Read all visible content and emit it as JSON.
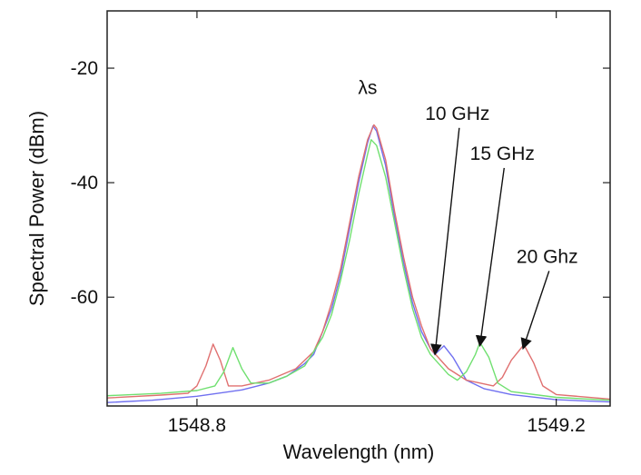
{
  "chart_data": {
    "type": "line",
    "title": "",
    "xlabel": "Wavelength (nm)",
    "ylabel": "Spectral Power (dBm)",
    "xlim": [
      1548.7,
      1549.26
    ],
    "ylim": [
      -79,
      -10
    ],
    "x_ticks": [
      {
        "value": 1548.8,
        "label": "1548.8"
      },
      {
        "value": 1549.2,
        "label": "1549.2"
      }
    ],
    "y_ticks": [
      {
        "value": -20,
        "label": "-20"
      },
      {
        "value": -40,
        "label": "-40"
      },
      {
        "value": -60,
        "label": "-60"
      }
    ],
    "grid": false,
    "legend": "none",
    "series": [
      {
        "color": "#7070f0",
        "points": [
          [
            1548.7,
            -78.4
          ],
          [
            1548.75,
            -78.0
          ],
          [
            1548.8,
            -77.3
          ],
          [
            1548.85,
            -76.2
          ],
          [
            1548.88,
            -75.0
          ],
          [
            1548.9,
            -73.8
          ],
          [
            1548.92,
            -71.6
          ],
          [
            1548.93,
            -70.0
          ],
          [
            1548.94,
            -66.0
          ],
          [
            1548.95,
            -62.0
          ],
          [
            1548.96,
            -56.0
          ],
          [
            1548.97,
            -48.0
          ],
          [
            1548.98,
            -40.0
          ],
          [
            1548.99,
            -33.0
          ],
          [
            1548.996,
            -30.1
          ],
          [
            1549.0,
            -31.0
          ],
          [
            1549.01,
            -37.0
          ],
          [
            1549.02,
            -46.0
          ],
          [
            1549.03,
            -54.0
          ],
          [
            1549.04,
            -61.0
          ],
          [
            1549.05,
            -66.0
          ],
          [
            1549.06,
            -69.0
          ],
          [
            1549.065,
            -70.0
          ],
          [
            1549.075,
            -68.5
          ],
          [
            1549.085,
            -70.5
          ],
          [
            1549.1,
            -74.5
          ],
          [
            1549.12,
            -76.0
          ],
          [
            1549.15,
            -77.0
          ],
          [
            1549.2,
            -77.9
          ],
          [
            1549.26,
            -78.3
          ]
        ]
      },
      {
        "color": "#e07070",
        "points": [
          [
            1548.7,
            -77.6
          ],
          [
            1548.76,
            -77.1
          ],
          [
            1548.79,
            -76.8
          ],
          [
            1548.8,
            -75.5
          ],
          [
            1548.81,
            -72.0
          ],
          [
            1548.818,
            -68.2
          ],
          [
            1548.826,
            -71.0
          ],
          [
            1548.835,
            -75.5
          ],
          [
            1548.85,
            -75.5
          ],
          [
            1548.88,
            -74.5
          ],
          [
            1548.91,
            -72.5
          ],
          [
            1548.93,
            -69.5
          ],
          [
            1548.94,
            -66.0
          ],
          [
            1548.95,
            -61.0
          ],
          [
            1548.96,
            -55.0
          ],
          [
            1548.97,
            -47.0
          ],
          [
            1548.98,
            -39.0
          ],
          [
            1548.99,
            -32.5
          ],
          [
            1548.997,
            -29.9
          ],
          [
            1549.0,
            -30.5
          ],
          [
            1549.01,
            -36.0
          ],
          [
            1549.02,
            -45.0
          ],
          [
            1549.03,
            -53.0
          ],
          [
            1549.04,
            -60.0
          ],
          [
            1549.05,
            -65.0
          ],
          [
            1549.06,
            -69.0
          ],
          [
            1549.08,
            -72.5
          ],
          [
            1549.1,
            -74.5
          ],
          [
            1549.13,
            -75.5
          ],
          [
            1549.14,
            -74.0
          ],
          [
            1549.15,
            -71.0
          ],
          [
            1549.164,
            -68.3
          ],
          [
            1549.175,
            -71.5
          ],
          [
            1549.185,
            -75.5
          ],
          [
            1549.2,
            -77.0
          ],
          [
            1549.26,
            -77.8
          ]
        ]
      },
      {
        "color": "#70e070",
        "points": [
          [
            1548.7,
            -77.2
          ],
          [
            1548.76,
            -76.8
          ],
          [
            1548.8,
            -76.3
          ],
          [
            1548.82,
            -75.5
          ],
          [
            1548.83,
            -73.0
          ],
          [
            1548.84,
            -68.8
          ],
          [
            1548.85,
            -72.5
          ],
          [
            1548.86,
            -75.0
          ],
          [
            1548.88,
            -75.0
          ],
          [
            1548.9,
            -73.8
          ],
          [
            1548.92,
            -72.0
          ],
          [
            1548.94,
            -67.0
          ],
          [
            1548.95,
            -63.0
          ],
          [
            1548.96,
            -57.0
          ],
          [
            1548.97,
            -50.0
          ],
          [
            1548.98,
            -42.0
          ],
          [
            1548.99,
            -35.0
          ],
          [
            1548.994,
            -32.5
          ],
          [
            1549.0,
            -33.5
          ],
          [
            1549.01,
            -39.0
          ],
          [
            1549.02,
            -47.0
          ],
          [
            1549.03,
            -55.0
          ],
          [
            1549.04,
            -62.0
          ],
          [
            1549.05,
            -67.0
          ],
          [
            1549.06,
            -70.0
          ],
          [
            1549.08,
            -73.5
          ],
          [
            1549.09,
            -74.5
          ],
          [
            1549.1,
            -73.0
          ],
          [
            1549.11,
            -70.0
          ],
          [
            1549.115,
            -67.9
          ],
          [
            1549.125,
            -70.5
          ],
          [
            1549.135,
            -75.0
          ],
          [
            1549.15,
            -76.5
          ],
          [
            1549.2,
            -77.5
          ],
          [
            1549.26,
            -78.0
          ]
        ]
      }
    ],
    "annotations": [
      {
        "text": "λs",
        "x": 1548.99,
        "y": -24.5
      },
      {
        "text": "10 GHz",
        "x": 1549.09,
        "y": -29,
        "arrow_to": [
          1549.065,
          -70.0
        ]
      },
      {
        "text": "15 GHz",
        "x": 1549.14,
        "y": -36,
        "arrow_to": [
          1549.115,
          -68.5
        ]
      },
      {
        "text": "20 Ghz",
        "x": 1549.19,
        "y": -54,
        "arrow_to": [
          1549.163,
          -69.0
        ]
      }
    ]
  }
}
